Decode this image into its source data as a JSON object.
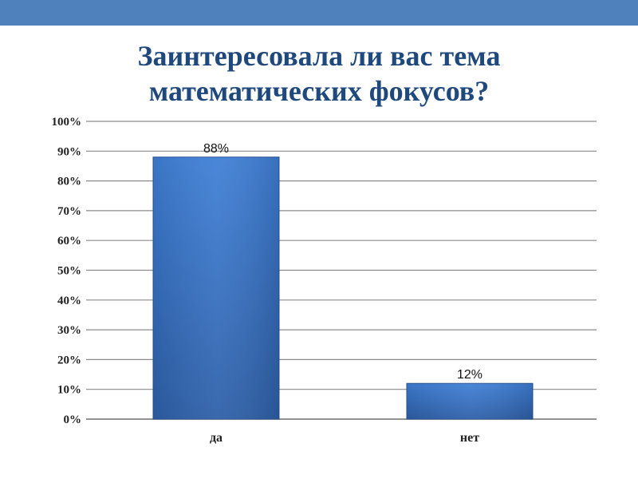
{
  "slide": {
    "title_lines": [
      "Заинтересовала ли вас тема",
      "математических фокусов?"
    ],
    "colors": {
      "top_bar": "#4f81bd",
      "title": "#1f497d",
      "bar": "#3a6fc4",
      "grid": "#8c8c8c"
    }
  },
  "chart_data": {
    "type": "bar",
    "title": "Заинтересовала ли вас тема математических фокусов?",
    "categories": [
      "да",
      "нет"
    ],
    "values": [
      88,
      12
    ],
    "data_labels": [
      "88%",
      "12%"
    ],
    "ylim": [
      0,
      100
    ],
    "yticks": [
      0,
      10,
      20,
      30,
      40,
      50,
      60,
      70,
      80,
      90,
      100
    ],
    "ytick_labels": [
      "0%",
      "10%",
      "20%",
      "30%",
      "40%",
      "50%",
      "60%",
      "70%",
      "80%",
      "90%",
      "100%"
    ],
    "xlabel": "",
    "ylabel": "",
    "grid": true,
    "legend": "none"
  }
}
